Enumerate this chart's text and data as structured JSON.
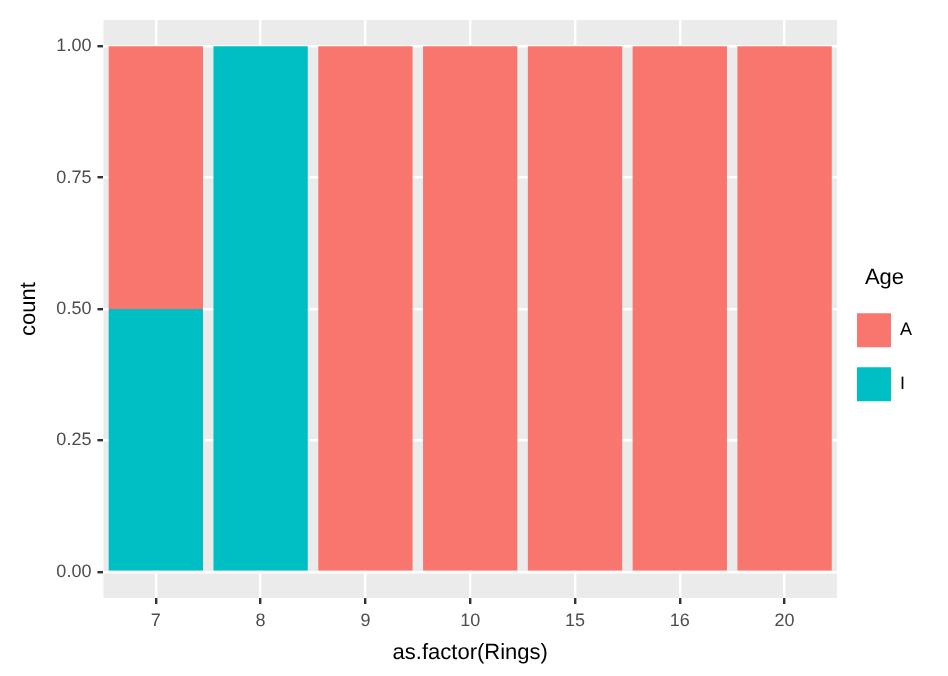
{
  "chart_data": {
    "type": "bar",
    "stacked": true,
    "xlabel": "as.factor(Rings)",
    "ylabel": "count",
    "legend_title": "Age",
    "legend": "right",
    "grid": true,
    "categories": [
      "7",
      "8",
      "9",
      "10",
      "15",
      "16",
      "20"
    ],
    "ylim": [
      -0.05,
      1.05
    ],
    "yticks": [
      {
        "value": 0,
        "label": "0.00"
      },
      {
        "value": 0.25,
        "label": "0.25"
      },
      {
        "value": 0.5,
        "label": "0.50"
      },
      {
        "value": 0.75,
        "label": "0.75"
      },
      {
        "value": 1,
        "label": "1.00"
      }
    ],
    "series": [
      {
        "name": "I",
        "color": "#00bfc4",
        "values": [
          0.5,
          1,
          0,
          0,
          0,
          0,
          0
        ]
      },
      {
        "name": "A",
        "color": "#f8766d",
        "values": [
          0.5,
          0,
          1,
          1,
          1,
          1,
          1
        ]
      }
    ]
  }
}
